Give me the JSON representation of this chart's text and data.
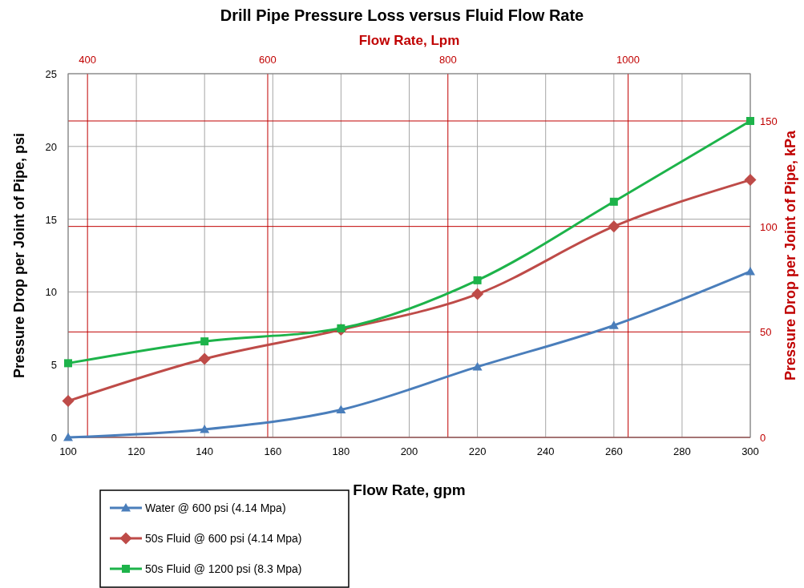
{
  "chart_data": {
    "type": "line",
    "title": "Drill Pipe Pressure Loss versus Fluid Flow Rate",
    "xlabel": "Flow Rate, gpm",
    "ylabel": "Pressure Drop per Joint of Pipe, psi",
    "x2label": "Flow Rate, Lpm",
    "y2label": "Pressure Drop per Joint of Pipe, kPa",
    "x": [
      100,
      140,
      180,
      220,
      260,
      300
    ],
    "xlim": [
      100,
      300
    ],
    "xticks": [
      100,
      120,
      140,
      160,
      180,
      200,
      220,
      240,
      260,
      280,
      300
    ],
    "ylim": [
      0,
      25
    ],
    "yticks": [
      0,
      5,
      10,
      15,
      20,
      25
    ],
    "x2lim": [
      378.5,
      1135.6
    ],
    "x2ticks": [
      400,
      600,
      800,
      1000
    ],
    "y2lim": [
      0,
      172.4
    ],
    "y2ticks": [
      0,
      50,
      100,
      150
    ],
    "grid": true,
    "legend": "bottom left",
    "series": [
      {
        "name": "Water @ 600 psi (4.14 Mpa)",
        "color": "#4a7ebb",
        "marker": "triangle",
        "values": [
          0,
          0.55,
          1.9,
          4.85,
          7.7,
          11.4
        ]
      },
      {
        "name": "50s Fluid @ 600 psi (4.14 Mpa)",
        "color": "#be4b48",
        "marker": "diamond",
        "values": [
          2.5,
          5.4,
          7.4,
          9.85,
          14.5,
          17.7
        ]
      },
      {
        "name": "50s Fluid @ 1200 psi (8.3 Mpa)",
        "color": "#1db34a",
        "marker": "square",
        "values": [
          5.1,
          6.6,
          7.5,
          10.8,
          16.2,
          21.75
        ]
      }
    ]
  }
}
